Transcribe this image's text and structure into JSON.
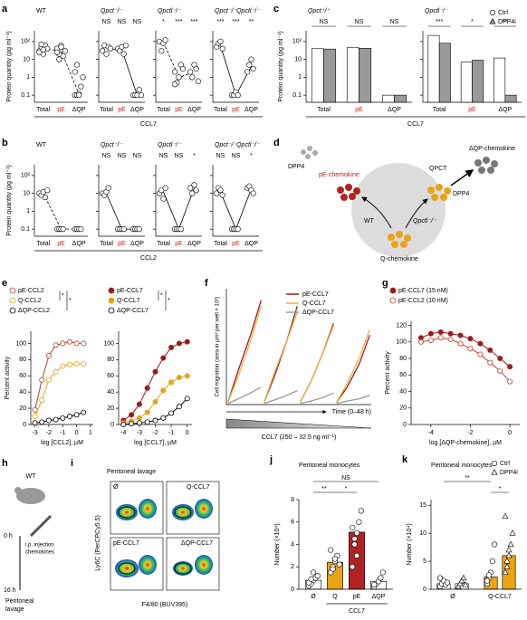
{
  "chart_data": [
    {
      "type": "dotplot",
      "label": "a",
      "ylabel": "Protein quantity (pg ml⁻¹)",
      "yscale": "log",
      "ylim": [
        0.04,
        400
      ],
      "yticks": [
        {
          "value": 100,
          "label": "10²"
        },
        10,
        1,
        0.1
      ],
      "categories": [
        "Total",
        "pE",
        "ΔQP"
      ],
      "category_colors": [
        "#000000",
        "#d7191c",
        "#000000"
      ],
      "group_label": "CCL7",
      "subplots": [
        {
          "title": "WT",
          "title_italic": false,
          "dashed": true,
          "line": [
            40,
            30,
            0.12
          ],
          "groups": [
            [
              30,
              50,
              20,
              60,
              40,
              25,
              70,
              35
            ],
            [
              40,
              20,
              60,
              15,
              30,
              25,
              10,
              50
            ],
            [
              0.1,
              0.1,
              0.12,
              0.3,
              1,
              2,
              5,
              0.1
            ]
          ]
        },
        {
          "title": "Qpct⁻/⁻",
          "title_italic": true,
          "dashed": false,
          "sig": [
            "NS",
            "NS",
            "NS"
          ],
          "line": [
            40,
            35,
            0.1
          ],
          "groups": [
            [
              30,
              60,
              20,
              50,
              40
            ],
            [
              40,
              30,
              50,
              20,
              60
            ],
            [
              0.1,
              0.1,
              0.1,
              0.2,
              0.1
            ]
          ]
        },
        {
          "title": "Qpctl⁻/⁻",
          "title_italic": true,
          "dashed": true,
          "sig": [
            "*",
            "***",
            "***"
          ],
          "line": [
            90,
            1,
            2
          ],
          "groups": [
            [
              100,
              30,
              80,
              120
            ],
            [
              2,
              0.5,
              1,
              5,
              3,
              0.4
            ],
            [
              2,
              1,
              5,
              3,
              0.6
            ]
          ]
        },
        {
          "title": "Qpct⁻/⁻Qpctl⁻/⁻",
          "title_italic": true,
          "dashed": false,
          "sig": [
            "***",
            "***",
            "**"
          ],
          "line": [
            60,
            0.1,
            4
          ],
          "groups": [
            [
              50,
              80,
              100,
              40
            ],
            [
              0.1,
              0.1,
              0.15,
              0.1
            ],
            [
              2,
              5,
              10,
              3
            ]
          ]
        }
      ]
    },
    {
      "type": "groupedbar",
      "label": "c",
      "ylabel": "Protein quantity (pg ml⁻¹)",
      "yscale": "log",
      "ylim": [
        0.04,
        400
      ],
      "yticks": [
        {
          "value": 100,
          "label": "10²"
        },
        10,
        1,
        0.1
      ],
      "categories": [
        "Total",
        "pE",
        "ΔQP"
      ],
      "category_colors": [
        "#000000",
        "#d7191c",
        "#000000"
      ],
      "group_label": "CCL7",
      "subplots": [
        {
          "title": "Qpct⁺/⁺",
          "title_italic": true,
          "sig": [
            "NS",
            "NS",
            "NS"
          ]
        },
        {
          "title": "Qpctl⁻/⁻",
          "title_italic": true,
          "sig": [
            "***",
            "*",
            "**"
          ]
        }
      ],
      "series": [
        {
          "name": "Ctrl",
          "color": "#ffffff",
          "marker": "circle",
          "values": [
            [
              40,
              45,
              0.1
            ],
            [
              220,
              7,
              12
            ]
          ]
        },
        {
          "name": "DPP4i",
          "color": "#999999",
          "marker": "triangle",
          "values": [
            [
              38,
              42,
              0.1
            ],
            [
              80,
              9,
              0.1
            ]
          ]
        }
      ]
    },
    {
      "type": "dotplot",
      "label": "b",
      "ylabel": "Protein quantity (pg ml⁻¹)",
      "yscale": "log",
      "ylim": [
        0.04,
        400
      ],
      "yticks": [
        {
          "value": 100,
          "label": "10²"
        },
        10,
        1,
        0.1
      ],
      "categories": [
        "Total",
        "pE",
        "ΔQP"
      ],
      "category_colors": [
        "#000000",
        "#d7191c",
        "#000000"
      ],
      "group_label": "CCL2",
      "subplots": [
        {
          "title": "WT",
          "title_italic": false,
          "dashed": true,
          "line": [
            10,
            0.1,
            0.1
          ],
          "groups": [
            [
              10,
              8,
              12,
              6,
              15
            ],
            [
              0.1,
              0.1,
              0.1,
              0.1
            ],
            [
              0.1,
              0.1,
              0.1,
              0.1
            ]
          ]
        },
        {
          "title": "Qpct⁻/⁻",
          "title_italic": true,
          "dashed": false,
          "sig": [
            "NS",
            "NS",
            "NS"
          ],
          "line": [
            10,
            0.1,
            0.1
          ],
          "groups": [
            [
              10,
              8,
              12,
              20
            ],
            [
              0.1,
              0.1,
              0.1,
              0.1
            ],
            [
              0.1,
              0.1,
              0.1,
              0.1
            ]
          ]
        },
        {
          "title": "Qpctl⁻/⁻",
          "title_italic": true,
          "dashed": false,
          "sig": [
            "NS",
            "NS",
            "*"
          ],
          "line": [
            12,
            0.1,
            20
          ],
          "groups": [
            [
              10,
              15,
              5,
              20
            ],
            [
              0.1,
              0.1,
              0.1,
              0.1
            ],
            [
              20,
              10,
              30,
              15
            ]
          ]
        },
        {
          "title": "Qpct⁻/⁻Qpctl⁻/⁻",
          "title_italic": true,
          "dashed": false,
          "sig": [
            "NS",
            "NS",
            "*"
          ],
          "line": [
            12,
            0.1,
            18
          ],
          "groups": [
            [
              10,
              20,
              15,
              8
            ],
            [
              0.1,
              0.1,
              0.1,
              0.1
            ],
            [
              20,
              25,
              15,
              10
            ]
          ]
        }
      ]
    },
    {
      "type": "curve",
      "label": "e",
      "ylabel": "Percent activity",
      "ylim": [
        0,
        115
      ],
      "yticks": [
        0,
        20,
        40,
        60,
        80,
        100
      ],
      "subplots": [
        {
          "xlabel": "log [CCL2], µM",
          "xlim": [
            -3.3,
            1.2
          ],
          "xticks": [
            -3,
            -2,
            -1,
            0,
            1
          ],
          "sig": [
            "*",
            "*"
          ],
          "series": [
            {
              "name": "pE-CCL2",
              "color": "#c0392b",
              "filled": false,
              "x": [
                -3,
                -2.5,
                -2,
                -1.5,
                -1,
                -0.5,
                0,
                0.5
              ],
              "values": [
                18,
                55,
                85,
                98,
                100,
                102,
                100,
                100
              ]
            },
            {
              "name": "Q-CCL2",
              "color": "#e8a317",
              "filled": false,
              "x": [
                -3,
                -2.5,
                -2,
                -1.5,
                -1,
                -0.5,
                0,
                0.5
              ],
              "values": [
                10,
                30,
                55,
                65,
                72,
                74,
                75,
                75
              ]
            },
            {
              "name": "ΔQP-CCL2",
              "color": "#000000",
              "filled": false,
              "x": [
                -3,
                -2.5,
                -2,
                -1.5,
                -1,
                -0.5,
                0,
                0.5
              ],
              "values": [
                2,
                3,
                5,
                6,
                8,
                10,
                12,
                15
              ]
            }
          ]
        },
        {
          "xlabel": "log [CCL7], µM",
          "xlim": [
            -4.3,
            0.3
          ],
          "xticks": [
            -4,
            -3,
            -2,
            -1,
            0
          ],
          "sig": [
            "*",
            "*"
          ],
          "series": [
            {
              "name": "pE-CCL7",
              "color": "#9b1b1b",
              "filled": true,
              "x": [
                -4,
                -3.5,
                -3,
                -2.5,
                -2,
                -1.5,
                -1,
                -0.5,
                0
              ],
              "values": [
                5,
                12,
                25,
                45,
                65,
                82,
                95,
                100,
                102
              ]
            },
            {
              "name": "Q-CCL7",
              "color": "#e8a317",
              "filled": true,
              "x": [
                -4,
                -3.5,
                -3,
                -2.5,
                -2,
                -1.5,
                -1,
                -0.5,
                0
              ],
              "values": [
                2,
                4,
                8,
                15,
                28,
                42,
                52,
                58,
                60
              ]
            },
            {
              "name": "ΔQP-CCL7",
              "color": "#000000",
              "filled": false,
              "x": [
                -4,
                -3.5,
                -3,
                -2.5,
                -2,
                -1.5,
                -1,
                -0.5,
                0
              ],
              "values": [
                0,
                1,
                2,
                3,
                5,
                8,
                14,
                22,
                32
              ]
            }
          ]
        }
      ]
    },
    {
      "type": "lines",
      "label": "f",
      "ylabel": "Cell migration (area in µm² per well × 10³)",
      "xlabel": "Time (0–48 h)",
      "gradient_label": "CCL7 (250 – 32.5 ng ml⁻¹)",
      "xlim": [
        0,
        48
      ],
      "ylim": [
        0,
        100
      ],
      "x": [
        0.5,
        4,
        8,
        11.5,
        12,
        12.5,
        16,
        20,
        23.5,
        24,
        24.5,
        28,
        32,
        35.5,
        36,
        36.5,
        40,
        44,
        47.5
      ],
      "series": [
        {
          "name": "pE-CCL7",
          "color": "#9b1b1b",
          "values": [
            2,
            30,
            60,
            90,
            null,
            2,
            25,
            55,
            85,
            null,
            2,
            20,
            45,
            70,
            null,
            2,
            15,
            35,
            60
          ]
        },
        {
          "name": "Q-CCL7",
          "color": "#f0b040",
          "values": [
            2,
            25,
            55,
            85,
            null,
            2,
            28,
            55,
            80,
            null,
            2,
            20,
            45,
            68,
            null,
            2,
            18,
            40,
            65
          ]
        },
        {
          "name": "ΔQP-CCL7",
          "color": "#999999",
          "values": [
            1,
            5,
            10,
            15,
            null,
            1,
            4,
            8,
            12,
            null,
            1,
            3,
            6,
            10,
            null,
            1,
            3,
            5,
            8
          ]
        }
      ]
    },
    {
      "type": "curve",
      "label": "g",
      "ylabel": "Percent activity",
      "ylim": [
        0,
        125
      ],
      "yticks": [
        0,
        20,
        40,
        60,
        80,
        100,
        120
      ],
      "subplots": [
        {
          "xlabel": "log [ΔQP-chemokine], µM",
          "xlim": [
            -5,
            0.5
          ],
          "xticks": [
            -4,
            -2,
            0
          ],
          "series": [
            {
              "name": "pE-CCL7 (15 nM)",
              "color": "#9b1b1b",
              "filled": true,
              "x": [
                -4.5,
                -4,
                -3.5,
                -3,
                -2.5,
                -2,
                -1.5,
                -1,
                -0.5,
                0
              ],
              "values": [
                105,
                110,
                112,
                110,
                108,
                104,
                98,
                90,
                80,
                70
              ]
            },
            {
              "name": "pE-CCL2 (10 nM)",
              "color": "#c0392b",
              "filled": false,
              "x": [
                -4.5,
                -4,
                -3.5,
                -3,
                -2.5,
                -2,
                -1.5,
                -1,
                -0.5,
                0
              ],
              "values": [
                100,
                102,
                105,
                103,
                98,
                92,
                85,
                75,
                65,
                52
              ]
            }
          ]
        }
      ]
    },
    {
      "type": "bardots",
      "label": "j",
      "title": "Peritoneal monocytes",
      "ylabel": "Number (×10⁴)",
      "ylim": [
        0,
        8
      ],
      "yticks": [
        0,
        2,
        4,
        6,
        8
      ],
      "categories": [
        "Ø",
        "Q",
        "pE",
        "ΔQP"
      ],
      "colors": [
        "#ffffff",
        "#e8a317",
        "#b22222",
        "#ffffff"
      ],
      "group_label": "CCL7",
      "values": [
        0.8,
        2.4,
        5.1,
        0.7
      ],
      "sig": [
        "**",
        "*",
        "NS"
      ],
      "points": [
        [
          0.3,
          0.5,
          0.8,
          1,
          1.2,
          0.6,
          0.9,
          1.5
        ],
        [
          1.5,
          2,
          2.5,
          3,
          2.2,
          3.5,
          1.8,
          2.7
        ],
        [
          2,
          4,
          5,
          6,
          7,
          5.5,
          4.5,
          3
        ],
        [
          0.2,
          0.5,
          0.7,
          1,
          1.5,
          0.4
        ]
      ]
    },
    {
      "type": "bardots",
      "label": "k",
      "title": "Peritoneal monocytes",
      "ylabel": "Number (×10⁴)",
      "ylim": [
        0,
        16
      ],
      "yticks": [
        0,
        5,
        10,
        15
      ],
      "categories": [
        "Ø",
        "Q-CCL7"
      ],
      "colors": [
        "#ffffff",
        "#e8a317"
      ],
      "sig": [
        "**",
        "*"
      ],
      "series": [
        {
          "name": "Ctrl",
          "marker": "circle",
          "values": [
            1,
            2.2
          ],
          "points": [
            [
              0.5,
              1,
              1.5,
              0.8,
              1.2,
              2
            ],
            [
              1,
              2,
              3,
              5,
              8,
              1.5,
              2.5
            ]
          ]
        },
        {
          "name": "DPP4i",
          "marker": "triangle",
          "values": [
            1,
            6
          ],
          "points": [
            [
              0.5,
              1,
              1.5,
              2,
              0.8
            ],
            [
              3,
              5,
              6,
              8,
              10,
              13,
              4,
              7
            ]
          ]
        }
      ]
    }
  ],
  "panel_d": {
    "label": "d",
    "texts": [
      "DPP4",
      "pE-chemokine",
      "QPCT",
      "ΔQP-chemokine",
      "DPP4",
      "WT",
      "Qpctl⁻/⁻",
      "Q-chemokine"
    ]
  },
  "panel_h": {
    "label": "h",
    "texts": [
      "WT",
      "0 h",
      "i.p. injection",
      "chemokines",
      "16 h",
      "Peritoneal",
      "lavage"
    ]
  },
  "panel_i": {
    "label": "i",
    "title": "Peritoneal lavage",
    "plots": [
      "Ø",
      "Q-CCL7",
      "pE-CCL7",
      "ΔQP-CCL7"
    ],
    "ylabel": "Ly6C (PerCPCy5.5)",
    "xlabel": "F4/80 (BUV395)"
  }
}
